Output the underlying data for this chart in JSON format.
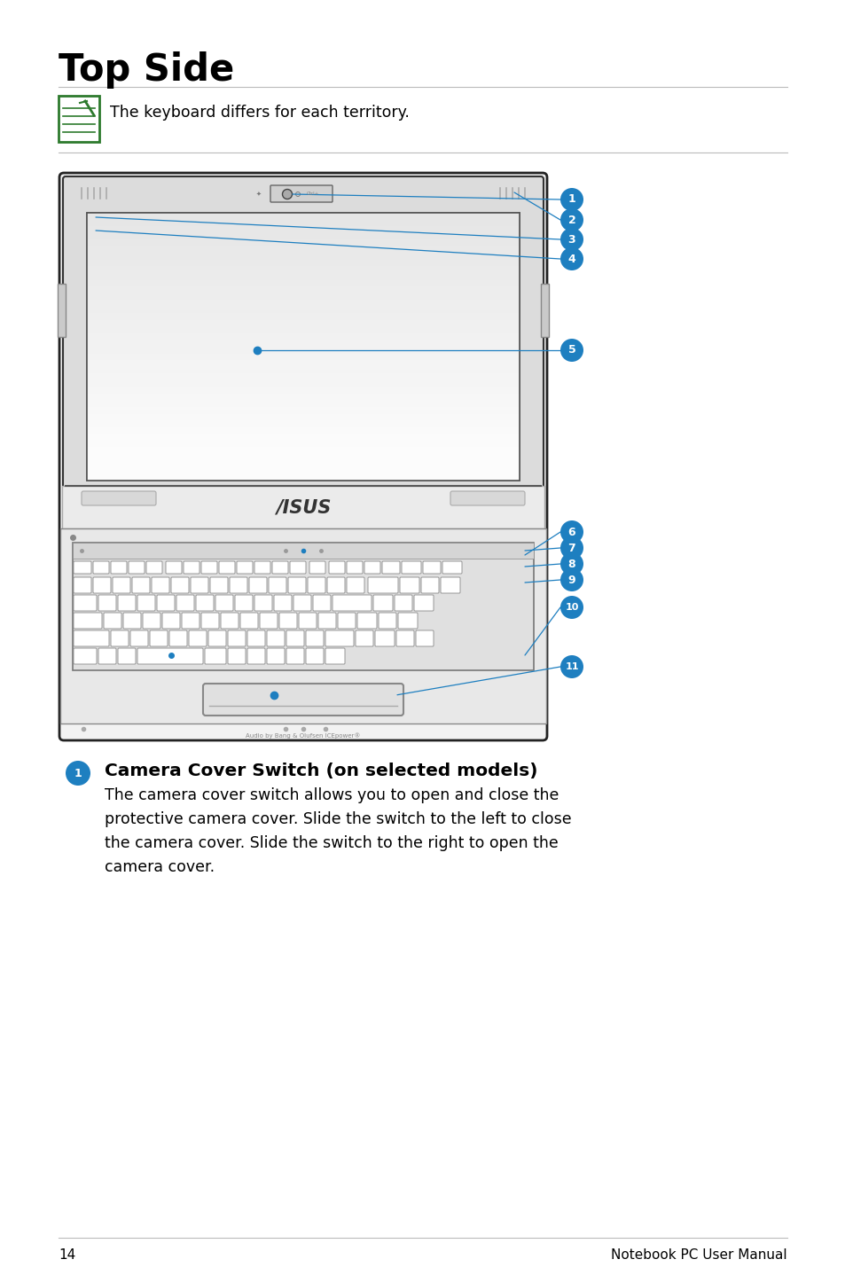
{
  "title": "Top Side",
  "note_text": "The keyboard differs for each territory.",
  "page_number": "14",
  "footer_text": "Notebook PC User Manual",
  "section_title": "Camera Cover Switch (on selected models)",
  "section_body": "The camera cover switch allows you to open and close the\nprotective camera cover. Slide the switch to the left to close\nthe camera cover. Slide the switch to the right to open the\ncamera cover.",
  "bg_color": "#ffffff",
  "text_color": "#000000",
  "blue_color": "#1e7fc0",
  "callout_bg": "#1e7fc0",
  "callout_text": "#ffffff",
  "laptop_outline": "#222222",
  "screen_bg": "#f5f5f5",
  "bezel_color": "#e0e0e0",
  "kbd_bg": "#f0f0f0",
  "tp_bg": "#e8e8e8"
}
